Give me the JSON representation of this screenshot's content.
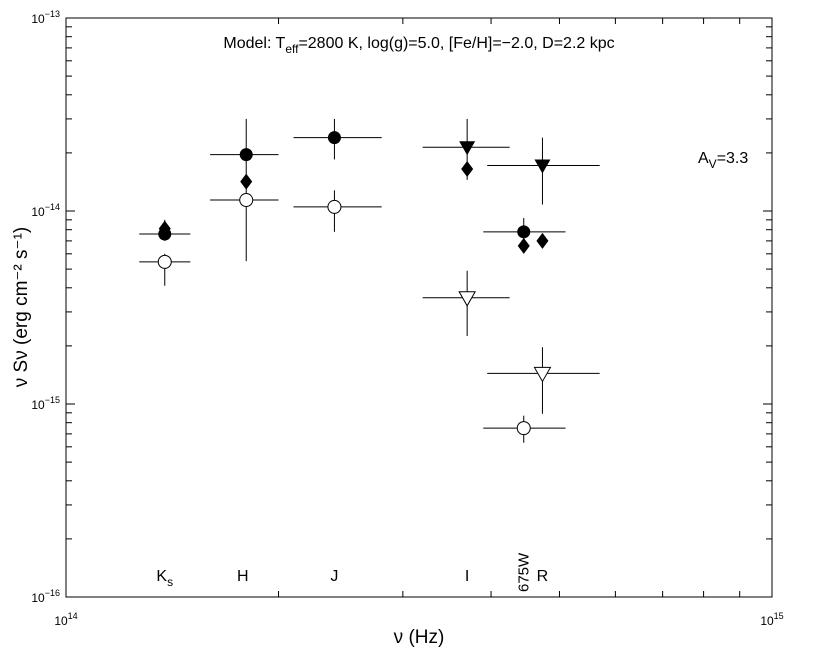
{
  "chart_data": {
    "type": "scatter",
    "title": {
      "parts": [
        {
          "t": "Model: T",
          "sub": false
        },
        {
          "t": "eff",
          "sub": true
        },
        {
          "t": "=2800 K, log(g)=5.0, [Fe/H]=−2.0, D=2.2 kpc",
          "sub": false
        }
      ]
    },
    "xlabel": "ν (Hz)",
    "ylabel": "ν Sν (erg cm⁻² s⁻¹)",
    "x_scale": "log",
    "y_scale": "log",
    "xlim": [
      100000000000000.0,
      1000000000000000.0
    ],
    "ylim": [
      1e-16,
      1e-13
    ],
    "x_ticks": [
      {
        "base": "10",
        "exp": "14"
      },
      {
        "base": "10",
        "exp": "15"
      }
    ],
    "y_ticks": [
      {
        "base": "10",
        "exp": "−16",
        "value": 1e-16
      },
      {
        "base": "10",
        "exp": "−15",
        "value": 1e-15
      },
      {
        "base": "10",
        "exp": "−14",
        "value": 1e-14
      },
      {
        "base": "10",
        "exp": "−13",
        "value": 1e-13
      }
    ],
    "annotation": {
      "main": "A",
      "sub": "V",
      "rest": "=3.3"
    },
    "band_labels": [
      {
        "text": "K",
        "sub": "s",
        "x": 138000000000000.0,
        "rotated": false
      },
      {
        "text": "H",
        "sub": "",
        "x": 178000000000000.0,
        "rotated": false
      },
      {
        "text": "J",
        "sub": "",
        "x": 240000000000000.0,
        "rotated": false
      },
      {
        "text": "I",
        "sub": "",
        "x": 370000000000000.0,
        "rotated": false
      },
      {
        "text": "675W",
        "sub": "",
        "x": 445000000000000.0,
        "rotated": true
      },
      {
        "text": "R",
        "sub": "",
        "x": 473000000000000.0,
        "rotated": false
      }
    ],
    "series": [
      {
        "marker": "filled-circle",
        "points": [
          {
            "x": 138000000000000.0,
            "y": 7.6e-15,
            "xerr": [
              127000000000000.0,
              150000000000000.0
            ],
            "yerr": [
              7e-15,
              9e-15
            ]
          },
          {
            "x": 180000000000000.0,
            "y": 1.96e-14,
            "xerr": [
              160000000000000.0,
              200000000000000.0
            ],
            "yerr": [
              1.35e-14,
              3e-14
            ]
          },
          {
            "x": 240000000000000.0,
            "y": 2.4e-14,
            "xerr": [
              210000000000000.0,
              280000000000000.0
            ],
            "yerr": [
              1.85e-14,
              3e-14
            ]
          },
          {
            "x": 445000000000000.0,
            "y": 7.8e-15,
            "xerr": [
              390000000000000.0,
              510000000000000.0
            ],
            "yerr": [
              7e-15,
              9.2e-15
            ]
          }
        ]
      },
      {
        "marker": "filled-diamond",
        "points": [
          {
            "x": 138000000000000.0,
            "y": 8.1e-15
          },
          {
            "x": 180000000000000.0,
            "y": 1.42e-14
          },
          {
            "x": 370000000000000.0,
            "y": 1.65e-14
          },
          {
            "x": 445000000000000.0,
            "y": 6.6e-15
          },
          {
            "x": 473000000000000.0,
            "y": 7e-15
          }
        ]
      },
      {
        "marker": "open-circle",
        "points": [
          {
            "x": 138000000000000.0,
            "y": 5.45e-15,
            "xerr": [
              127000000000000.0,
              150000000000000.0
            ],
            "yerr": [
              4.1e-15,
              6e-15
            ]
          },
          {
            "x": 180000000000000.0,
            "y": 1.14e-14,
            "xerr": [
              160000000000000.0,
              200000000000000.0
            ],
            "yerr": [
              5.5e-15,
              1.5e-14
            ]
          },
          {
            "x": 240000000000000.0,
            "y": 1.05e-14,
            "xerr": [
              210000000000000.0,
              280000000000000.0
            ],
            "yerr": [
              7.8e-15,
              1.28e-14
            ]
          },
          {
            "x": 445000000000000.0,
            "y": 7.5e-16,
            "xerr": [
              390000000000000.0,
              510000000000000.0
            ],
            "yerr": [
              6.3e-16,
              8.7e-16
            ]
          }
        ]
      },
      {
        "marker": "filled-triangle-down",
        "points": [
          {
            "x": 370000000000000.0,
            "y": 2.14e-14,
            "xerr": [
              320000000000000.0,
              425000000000000.0
            ],
            "yerr": [
              1.45e-14,
              3e-14
            ]
          },
          {
            "x": 473000000000000.0,
            "y": 1.72e-14,
            "xerr": [
              395000000000000.0,
              570000000000000.0
            ],
            "yerr": [
              1.08e-14,
              2.4e-14
            ]
          }
        ]
      },
      {
        "marker": "open-triangle-down",
        "points": [
          {
            "x": 370000000000000.0,
            "y": 3.55e-15,
            "xerr": [
              320000000000000.0,
              425000000000000.0
            ],
            "yerr": [
              2.25e-15,
              4.9e-15
            ]
          },
          {
            "x": 473000000000000.0,
            "y": 1.44e-15,
            "xerr": [
              395000000000000.0,
              570000000000000.0
            ],
            "yerr": [
              8.9e-16,
              1.97e-15
            ]
          }
        ]
      }
    ]
  }
}
